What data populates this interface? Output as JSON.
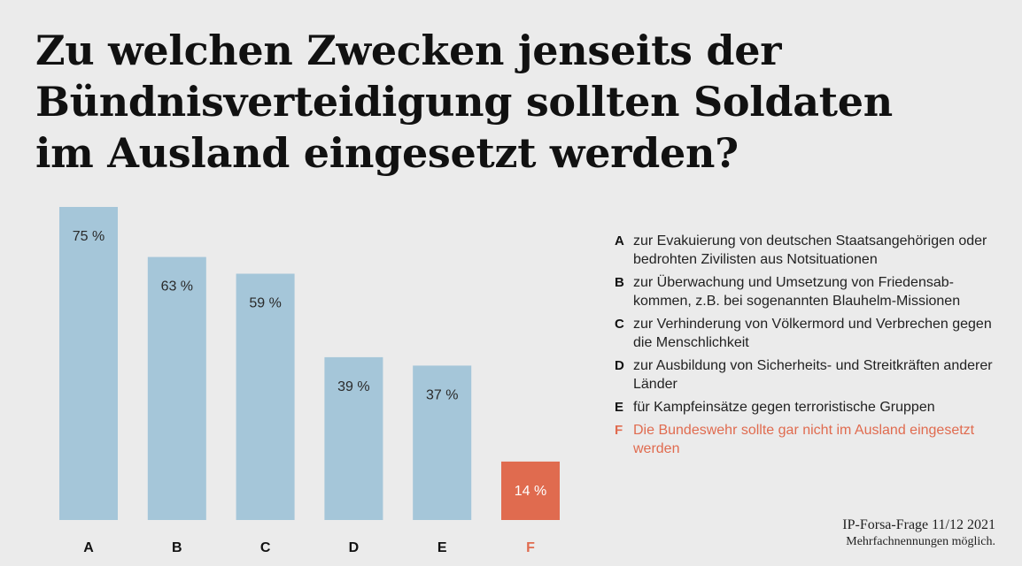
{
  "title_lines": [
    "Zu welchen Zwecken jenseits der",
    "Bündnisverteidigung sollten Soldaten",
    "im Ausland eingesetzt werden?"
  ],
  "chart_data": {
    "type": "bar",
    "title": "Zu welchen Zwecken jenseits der Bündnisverteidigung sollten Soldaten im Ausland eingesetzt werden?",
    "categories": [
      "A",
      "B",
      "C",
      "D",
      "E",
      "F"
    ],
    "values": [
      75,
      63,
      59,
      39,
      37,
      14
    ],
    "data_labels": [
      "75 %",
      "63 %",
      "59 %",
      "39 %",
      "37 %",
      "14 %"
    ],
    "unit": "%",
    "ylim": [
      0,
      75
    ],
    "grid": false,
    "colors": [
      "#a5c6d9",
      "#a5c6d9",
      "#a5c6d9",
      "#a5c6d9",
      "#a5c6d9",
      "#e06b4f"
    ],
    "legend_position": "right"
  },
  "legend": [
    {
      "letter": "A",
      "text": "zur Evakuierung von deutschen Staatsangehörigen oder bedrohten Zivilisten aus Notsituationen",
      "highlight": false
    },
    {
      "letter": "B",
      "text": "zur Überwachung und Umsetzung von Friedensab­kommen, z.B. bei sogenannten Blauhelm-Missionen",
      "highlight": false
    },
    {
      "letter": "C",
      "text": "zur Verhinderung von Völkermord und Verbrechen gegen die Menschlichkeit",
      "highlight": false
    },
    {
      "letter": "D",
      "text": "zur Ausbildung von Sicherheits- und Streitkräften anderer Länder",
      "highlight": false
    },
    {
      "letter": "E",
      "text": "für Kampfeinsätze gegen terroristische Gruppen",
      "highlight": false
    },
    {
      "letter": "F",
      "text": "Die Bundeswehr sollte gar nicht im Ausland eingesetzt werden",
      "highlight": true
    }
  ],
  "source": {
    "line": "IP-Forsa-Frage 11/12 2021",
    "note": "Mehrfachnennungen möglich."
  },
  "colors": {
    "background": "#ebebeb",
    "bar": "#a5c6d9",
    "accent": "#e06b4f"
  }
}
